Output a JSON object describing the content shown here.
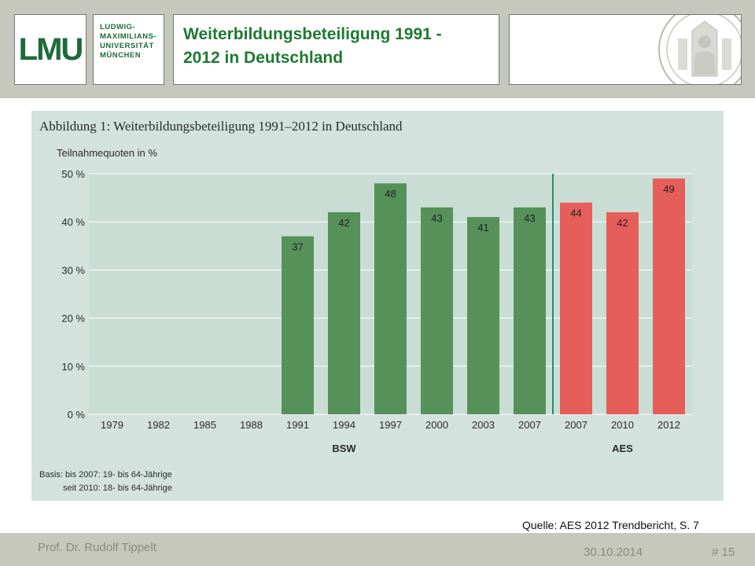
{
  "header": {
    "logo_text": "LMU",
    "university_lines": [
      "LUDWIG-",
      "MAXIMILIANS-",
      "UNIVERSITÄT",
      "MÜNCHEN"
    ],
    "title_line1": "Weiterbildungsbeteiligung 1991 -",
    "title_line2": "2012 in Deutschland"
  },
  "figure": {
    "title": "Abbildung 1: Weiterbildungsbeteiligung 1991–2012 in Deutschland",
    "basis_line1": "Basis: bis 2007: 19- bis 64-Jährige",
    "basis_line2": "seit 2010: 18- bis 64-Jährige"
  },
  "chart_data": {
    "type": "bar",
    "title": "Abbildung 1: Weiterbildungsbeteiligung 1991–2012 in Deutschland",
    "ylabel": "Teilnahmequoten in %",
    "xlabel": "",
    "ylim": [
      0,
      50
    ],
    "yticks": [
      "0 %",
      "10 %",
      "20 %",
      "30 %",
      "40 %",
      "50 %"
    ],
    "grid": true,
    "categories": [
      "1979",
      "1982",
      "1985",
      "1988",
      "1991",
      "1994",
      "1997",
      "2000",
      "2003",
      "2007",
      "2007",
      "2010",
      "2012"
    ],
    "values": [
      null,
      null,
      null,
      null,
      37,
      42,
      48,
      43,
      41,
      43,
      44,
      42,
      49
    ],
    "groups": [
      {
        "label": "BSW",
        "color": "#56915a"
      },
      {
        "label": "AES",
        "color": "#e65e59"
      }
    ],
    "group_of": [
      0,
      0,
      0,
      0,
      0,
      0,
      0,
      0,
      0,
      0,
      1,
      1,
      1
    ]
  },
  "source": "Quelle: AES 2012 Trendbericht, S. 7",
  "footer": {
    "author": "Prof. Dr. Rudolf Tippelt",
    "date": "30.10.2014",
    "page": "# 15"
  },
  "colors": {
    "title_green": "#1e7a32",
    "figure_bg": "#d4e2dd",
    "plot_bg": "#c9ddd4",
    "divider": "#2f8a6e"
  }
}
